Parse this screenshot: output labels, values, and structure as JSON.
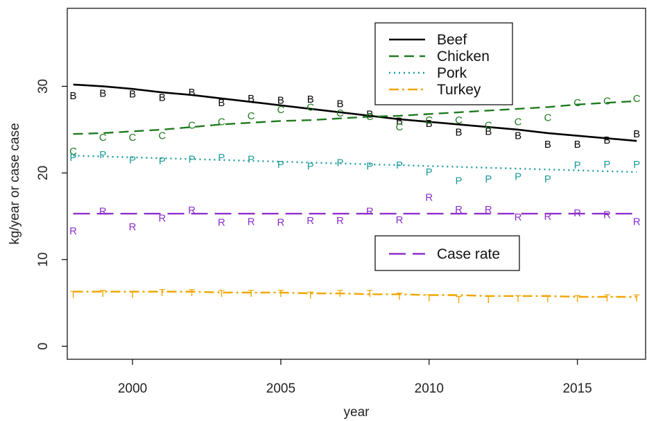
{
  "chart_data": {
    "type": "line",
    "xlabel": "year",
    "ylabel": "kg/year or case case",
    "xlim": [
      1997.8,
      2017.3
    ],
    "ylim": [
      -1.5,
      39
    ],
    "xticks": [
      2000,
      2005,
      2010,
      2015
    ],
    "yticks": [
      0,
      10,
      20,
      30
    ],
    "grid": false,
    "x": [
      1998,
      1999,
      2000,
      2001,
      2002,
      2003,
      2004,
      2005,
      2006,
      2007,
      2008,
      2009,
      2010,
      2011,
      2012,
      2013,
      2014,
      2015,
      2016,
      2017
    ],
    "series": [
      {
        "name": "Beef",
        "marker": "B",
        "color": "#000000",
        "dash": "none",
        "observed": [
          28.9,
          29.2,
          29.1,
          28.7,
          29.3,
          28.1,
          28.6,
          28.4,
          28.5,
          28.0,
          26.8,
          26.0,
          25.7,
          24.7,
          24.8,
          24.3,
          23.3,
          23.3,
          23.8,
          24.5
        ],
        "fit": [
          30.2,
          30.0,
          29.7,
          29.3,
          29.0,
          28.6,
          28.2,
          27.8,
          27.4,
          27.0,
          26.6,
          26.2,
          25.9,
          25.6,
          25.3,
          25.0,
          24.6,
          24.3,
          24.0,
          23.7
        ]
      },
      {
        "name": "Chicken",
        "marker": "C",
        "color": "#1e7a1e",
        "dash": "14 8",
        "observed": [
          22.5,
          24.1,
          24.1,
          24.3,
          25.5,
          25.9,
          26.6,
          27.3,
          27.6,
          26.9,
          26.5,
          25.3,
          26.1,
          26.1,
          25.5,
          25.9,
          26.4,
          28.1,
          28.3,
          28.6
        ],
        "fit": [
          24.5,
          24.6,
          24.8,
          25.0,
          25.3,
          25.6,
          25.8,
          26.0,
          26.1,
          26.3,
          26.5,
          26.6,
          26.8,
          27.0,
          27.2,
          27.4,
          27.6,
          27.9,
          28.1,
          28.3
        ]
      },
      {
        "name": "Pork",
        "marker": "P",
        "color": "#1a9a9a",
        "dash": "2 5",
        "observed": [
          21.8,
          22.1,
          21.5,
          21.4,
          21.6,
          21.8,
          21.6,
          21.0,
          20.8,
          21.2,
          20.8,
          20.9,
          20.1,
          19.1,
          19.3,
          19.6,
          19.3,
          20.9,
          21.0,
          21.0
        ],
        "fit": [
          22.0,
          21.9,
          21.8,
          21.7,
          21.6,
          21.5,
          21.4,
          21.3,
          21.2,
          21.1,
          21.0,
          20.9,
          20.8,
          20.7,
          20.6,
          20.5,
          20.4,
          20.3,
          20.2,
          20.1
        ]
      },
      {
        "name": "Turkey",
        "marker": "T",
        "color": "#f0a500",
        "dash": "14 5 3 5",
        "observed": [
          6.0,
          6.1,
          6.0,
          6.2,
          6.2,
          6.1,
          6.1,
          6.1,
          5.9,
          6.1,
          6.1,
          5.8,
          5.6,
          5.4,
          5.4,
          5.5,
          5.5,
          5.5,
          5.6,
          5.6
        ],
        "fit": [
          6.3,
          6.3,
          6.3,
          6.3,
          6.3,
          6.2,
          6.2,
          6.2,
          6.1,
          6.1,
          6.0,
          6.0,
          5.9,
          5.9,
          5.8,
          5.8,
          5.8,
          5.7,
          5.7,
          5.7
        ]
      },
      {
        "name": "Case rate",
        "marker": "R",
        "color": "#8b2fc9",
        "dash": "24 10",
        "observed": [
          13.3,
          15.6,
          13.8,
          14.8,
          15.7,
          14.3,
          14.4,
          14.3,
          14.5,
          14.5,
          15.6,
          14.6,
          17.2,
          15.8,
          15.8,
          14.9,
          15.0,
          15.4,
          15.2,
          14.4
        ],
        "fit": [
          15.3,
          15.3,
          15.3,
          15.3,
          15.3,
          15.3,
          15.3,
          15.3,
          15.3,
          15.3,
          15.3,
          15.3,
          15.3,
          15.3,
          15.3,
          15.3,
          15.3,
          15.3,
          15.3,
          15.3
        ]
      }
    ],
    "legends": [
      {
        "entries": [
          "Beef",
          "Chicken",
          "Pork",
          "Turkey"
        ],
        "placement": "top-right"
      },
      {
        "entries": [
          "Case rate"
        ],
        "placement": "center-right"
      }
    ]
  }
}
